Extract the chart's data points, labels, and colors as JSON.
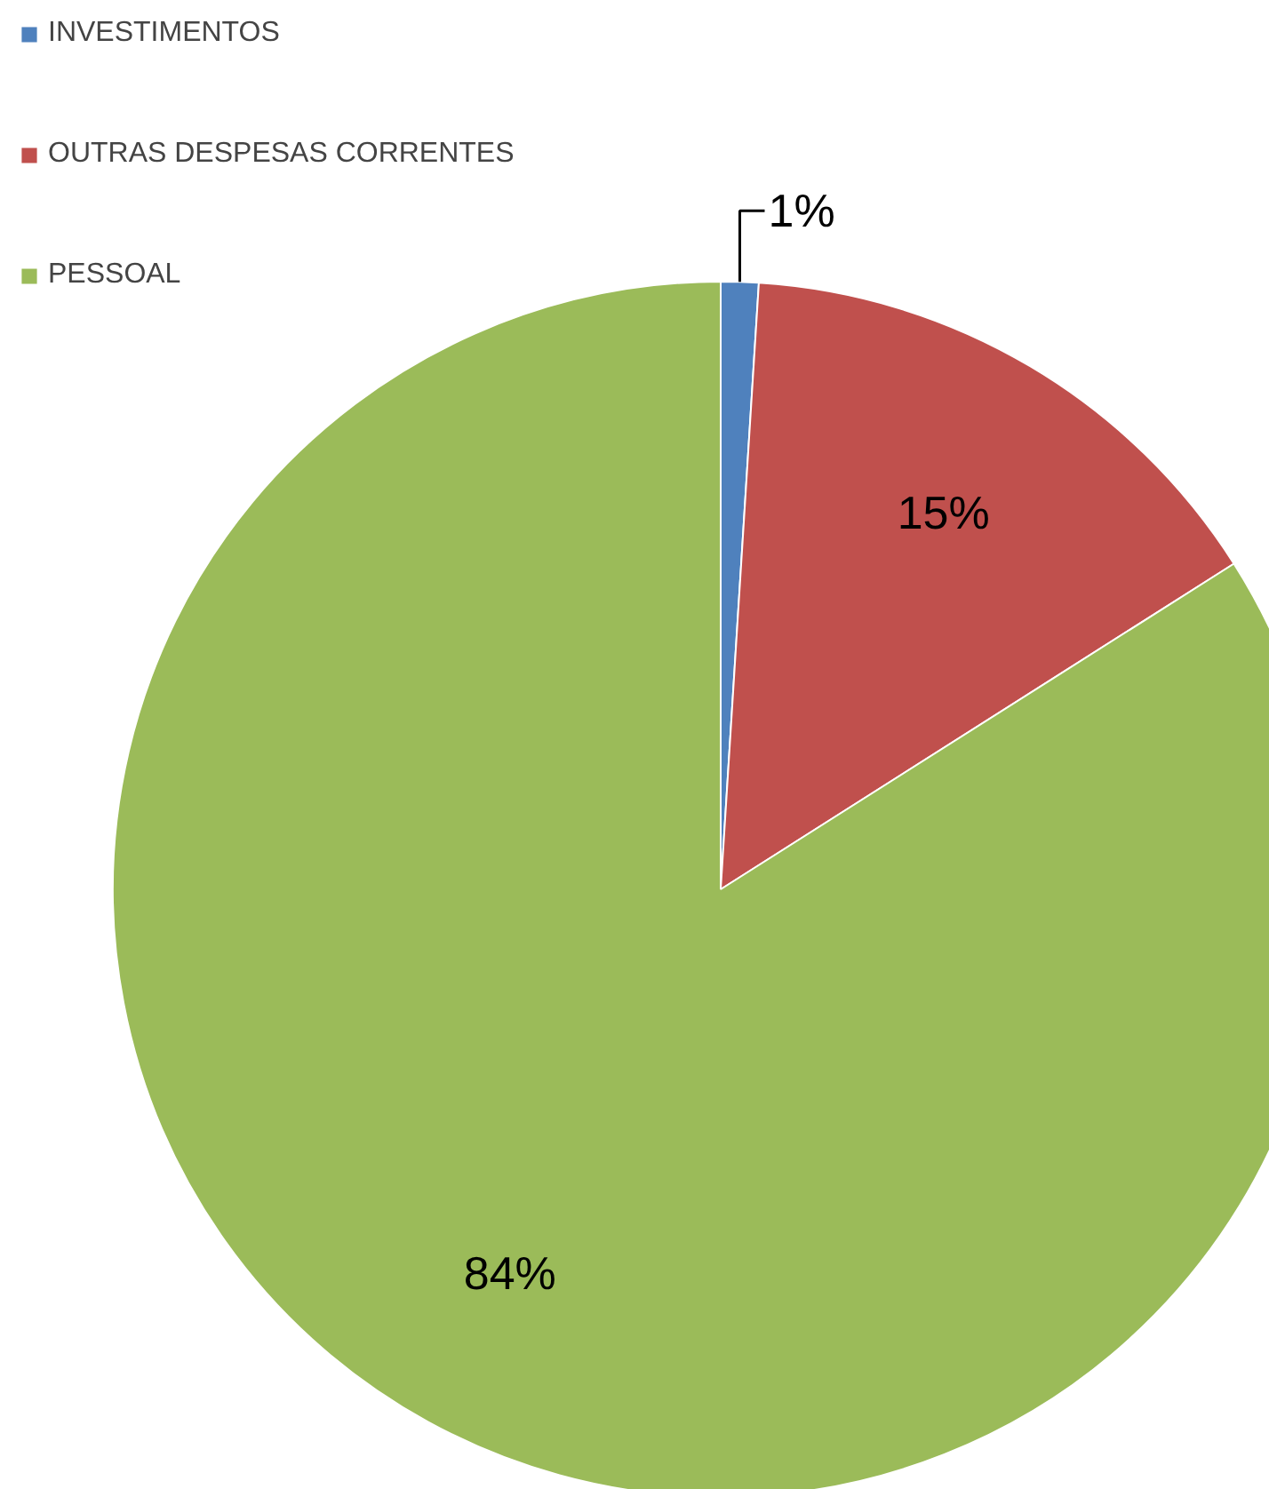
{
  "chart_data": {
    "type": "pie",
    "categories": [
      "INVESTIMENTOS",
      "OUTRAS DESPESAS CORRENTES",
      "PESSOAL"
    ],
    "values": [
      1,
      15,
      84
    ],
    "colors": [
      "#4f81bd",
      "#c0504d",
      "#9bbb59"
    ],
    "value_labels": [
      "1%",
      "15%",
      "84%"
    ],
    "legend": "top left"
  }
}
